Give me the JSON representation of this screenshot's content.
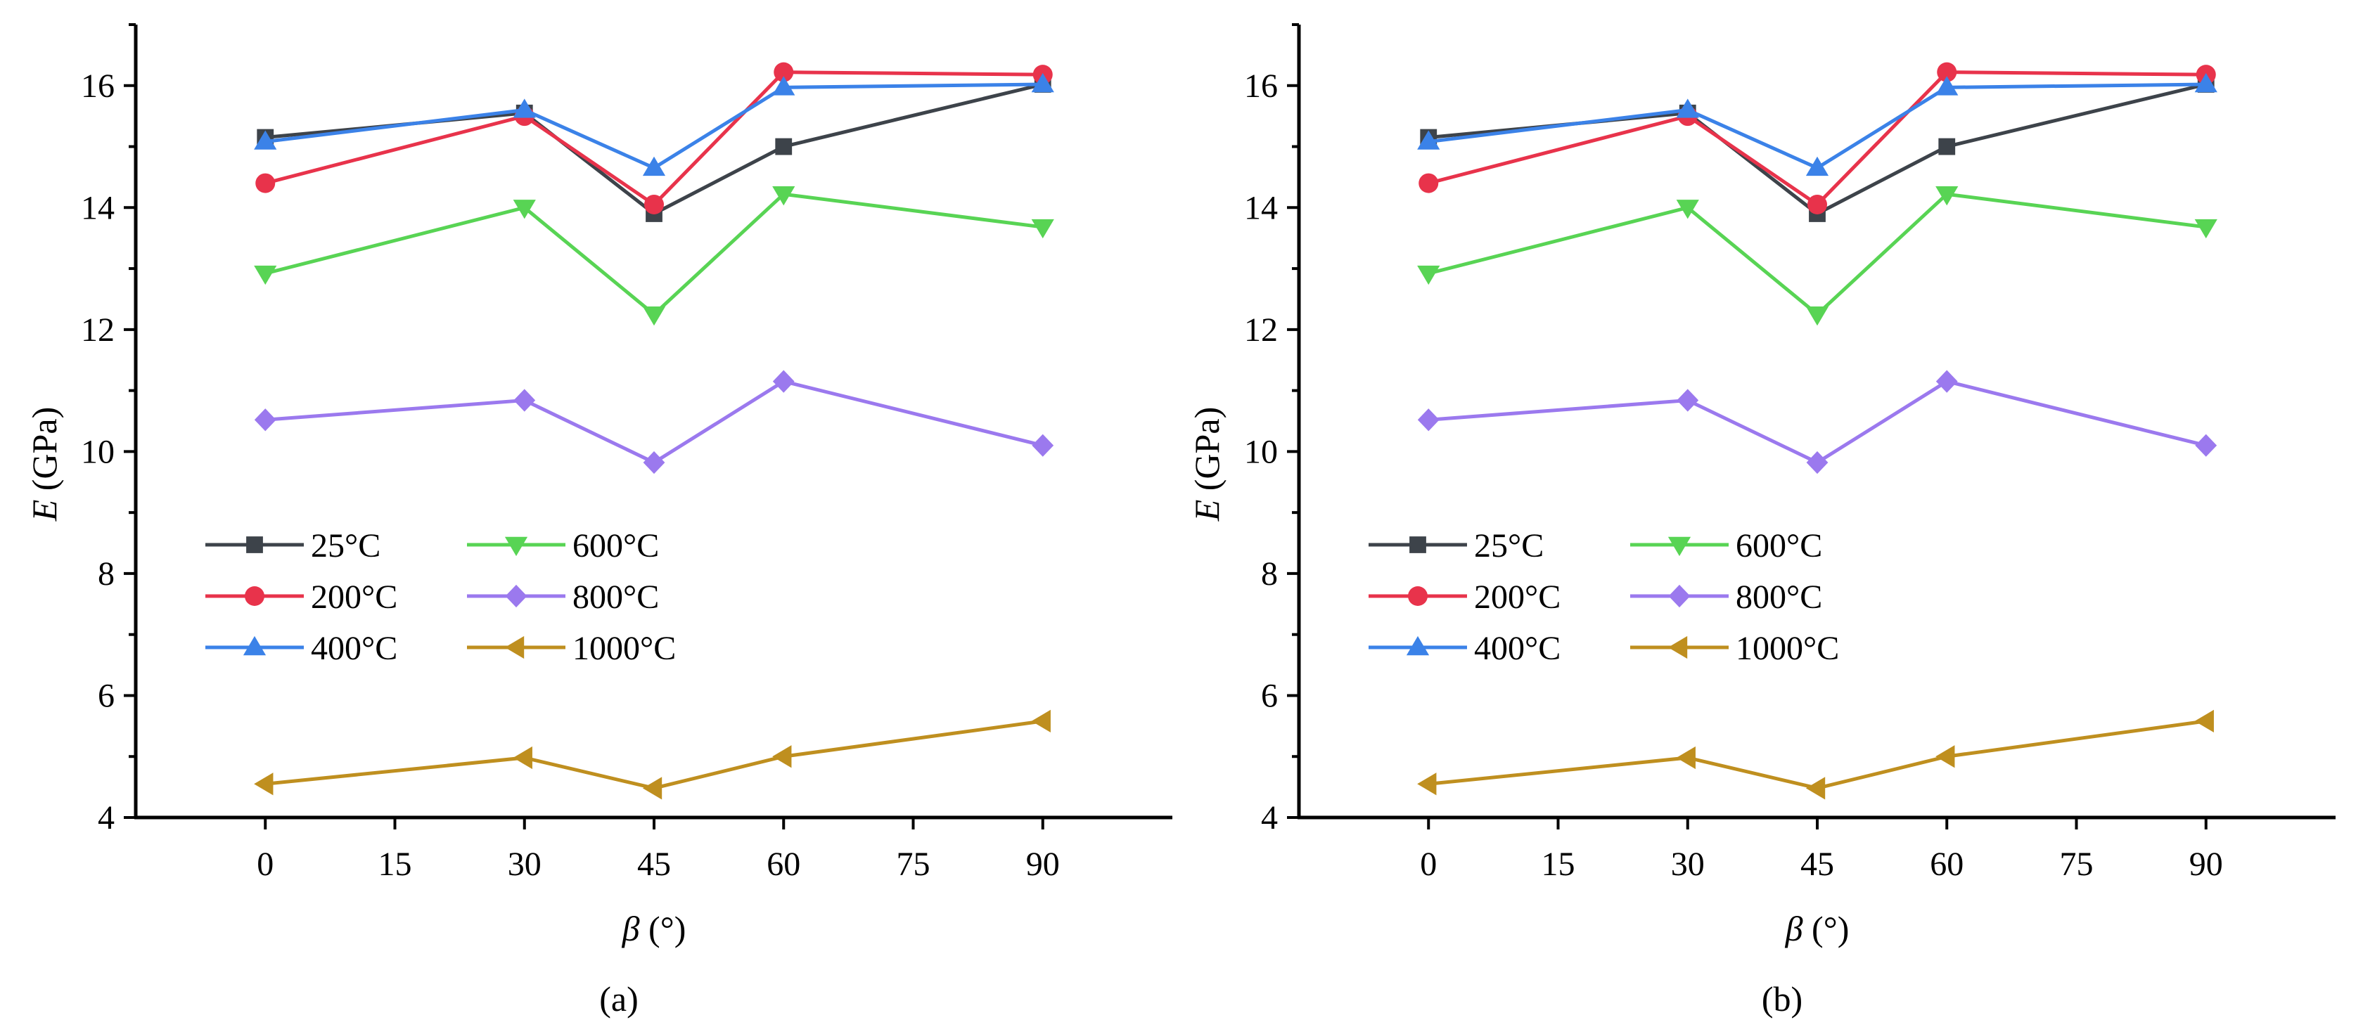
{
  "chart_data": [
    {
      "type": "line",
      "panel_label": "(a)",
      "xlabel_symbol": "β",
      "xlabel_unit": "(°)",
      "ylabel_symbol": "E",
      "ylabel_unit": "(GPa)",
      "xlim": [
        -15,
        105
      ],
      "ylim": [
        4,
        17
      ],
      "xticks": [
        0,
        15,
        30,
        45,
        60,
        75,
        90
      ],
      "yticks": [
        4,
        6,
        8,
        10,
        12,
        14,
        16
      ],
      "x": [
        0,
        30,
        45,
        60,
        90
      ],
      "series": [
        {
          "name": "25°C",
          "color": "#3d434a",
          "marker": "square",
          "values": [
            15.15,
            15.55,
            13.9,
            15.0,
            16.02
          ]
        },
        {
          "name": "200°C",
          "color": "#e8334b",
          "marker": "circle",
          "values": [
            14.4,
            15.5,
            14.05,
            16.22,
            16.18
          ]
        },
        {
          "name": "400°C",
          "color": "#3b82e8",
          "marker": "triangle-up",
          "values": [
            15.08,
            15.6,
            14.65,
            15.97,
            16.02
          ]
        },
        {
          "name": "600°C",
          "color": "#58d454",
          "marker": "triangle-down",
          "values": [
            12.92,
            14.0,
            12.25,
            14.22,
            13.68
          ]
        },
        {
          "name": "800°C",
          "color": "#9b79ee",
          "marker": "diamond",
          "values": [
            10.52,
            10.84,
            9.82,
            11.15,
            10.1
          ]
        },
        {
          "name": "1000°C",
          "color": "#bf8f1f",
          "marker": "triangle-left",
          "values": [
            4.55,
            4.98,
            4.48,
            5.0,
            5.58
          ]
        }
      ]
    },
    {
      "type": "line",
      "panel_label": "(b)",
      "xlabel_symbol": "β",
      "xlabel_unit": "(°)",
      "ylabel_symbol": "E",
      "ylabel_unit": "(GPa)",
      "xlim": [
        -15,
        105
      ],
      "ylim": [
        4,
        17
      ],
      "xticks": [
        0,
        15,
        30,
        45,
        60,
        75,
        90
      ],
      "yticks": [
        4,
        6,
        8,
        10,
        12,
        14,
        16
      ],
      "x": [
        0,
        30,
        45,
        60,
        90
      ],
      "series": [
        {
          "name": "25°C",
          "color": "#3d434a",
          "marker": "square",
          "values": [
            15.15,
            15.55,
            13.9,
            15.0,
            16.02
          ]
        },
        {
          "name": "200°C",
          "color": "#e8334b",
          "marker": "circle",
          "values": [
            14.4,
            15.5,
            14.05,
            16.22,
            16.18
          ]
        },
        {
          "name": "400°C",
          "color": "#3b82e8",
          "marker": "triangle-up",
          "values": [
            15.08,
            15.6,
            14.65,
            15.97,
            16.02
          ]
        },
        {
          "name": "600°C",
          "color": "#58d454",
          "marker": "triangle-down",
          "values": [
            12.92,
            14.0,
            12.25,
            14.22,
            13.68
          ]
        },
        {
          "name": "800°C",
          "color": "#9b79ee",
          "marker": "diamond",
          "values": [
            10.52,
            10.84,
            9.82,
            11.15,
            10.1
          ]
        },
        {
          "name": "1000°C",
          "color": "#bf8f1f",
          "marker": "triangle-left",
          "values": [
            4.55,
            4.98,
            4.48,
            5.0,
            5.58
          ]
        }
      ]
    }
  ]
}
